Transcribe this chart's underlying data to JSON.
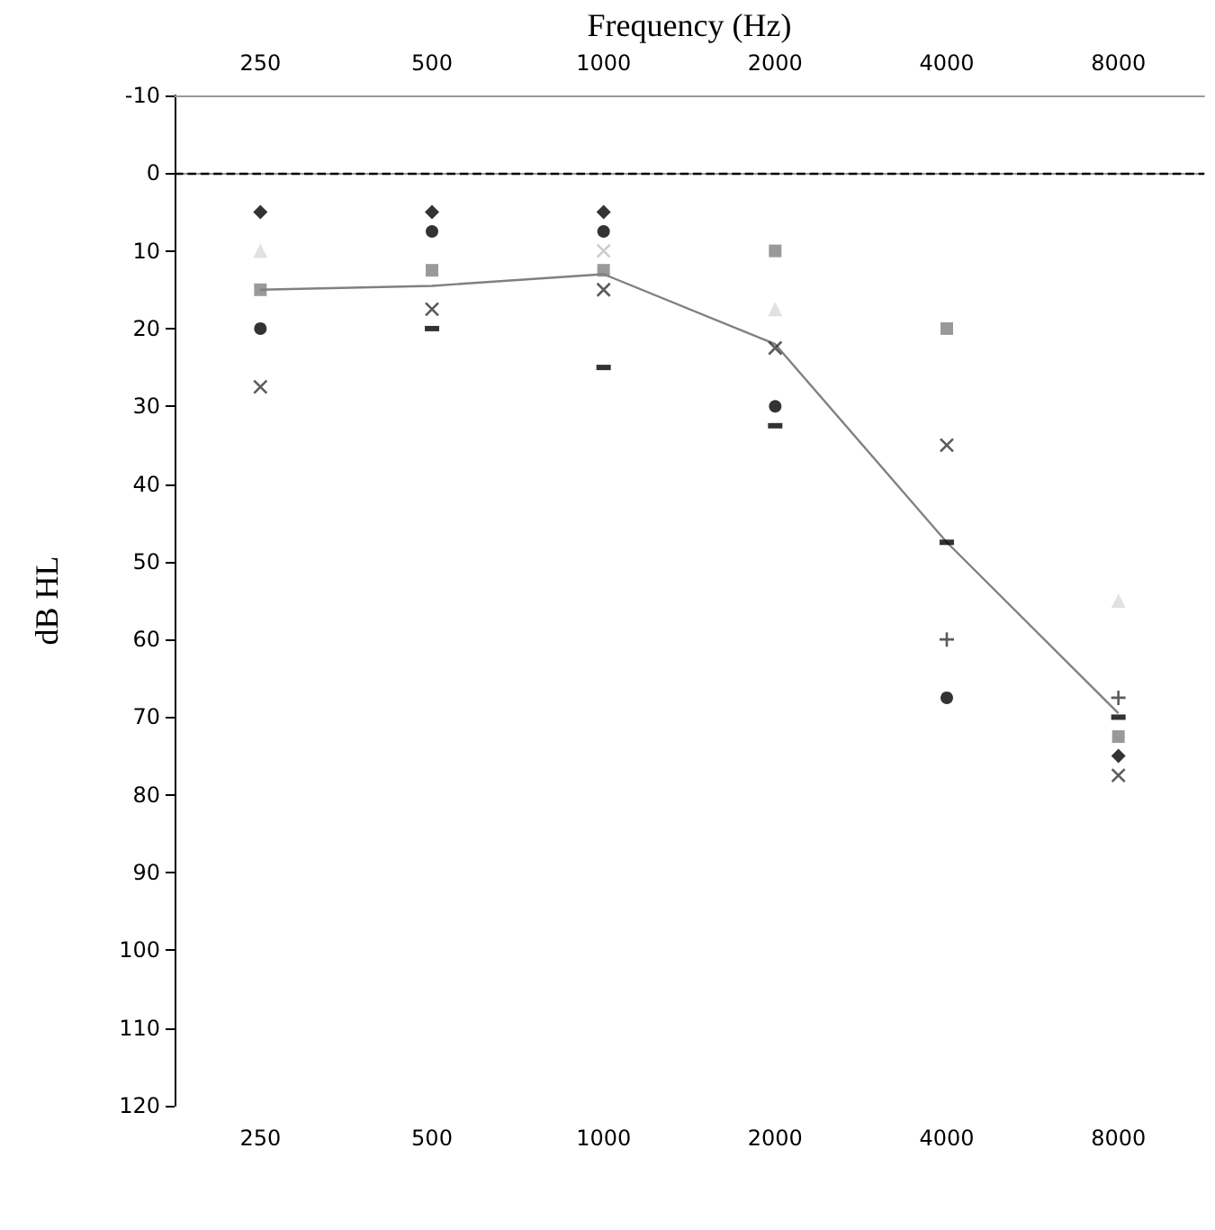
{
  "chart_data": {
    "type": "scatter",
    "xlabel": "Frequency (Hz)",
    "ylabel": "dB HL",
    "categories": [
      "250",
      "500",
      "1000",
      "2000",
      "4000",
      "8000"
    ],
    "ylim": [
      120,
      -10
    ],
    "yticks": [
      -10,
      0,
      10,
      20,
      30,
      40,
      50,
      60,
      70,
      80,
      90,
      100,
      110,
      120
    ],
    "grid": false,
    "ref_lines": [
      {
        "axis": "y",
        "value": 0,
        "color": "#000000",
        "line_style": "dashed"
      }
    ],
    "series": [
      {
        "color": "#000000",
        "marker": "diamond",
        "values": [
          5,
          5,
          5,
          null,
          null,
          75
        ]
      },
      {
        "color": "#000000",
        "marker": "circle",
        "values": [
          20,
          7.5,
          7.5,
          30,
          67.5,
          null
        ]
      },
      {
        "color": "#d9d9d9",
        "marker": "triangle",
        "values": [
          10,
          null,
          null,
          17.5,
          null,
          55
        ]
      },
      {
        "color": "#7f7f7f",
        "marker": "square",
        "values": [
          15,
          12.5,
          12.5,
          10,
          20,
          72.5
        ]
      },
      {
        "color": "#333333",
        "marker": "cross",
        "values": [
          27.5,
          17.5,
          15,
          22.5,
          35,
          77.5
        ]
      },
      {
        "color": "#000000",
        "values": [
          null,
          20,
          25,
          32.5,
          47.5,
          70
        ]
      },
      {
        "color": "#333333",
        "marker": "plus",
        "values": [
          null,
          null,
          null,
          null,
          60,
          67.5
        ]
      },
      {
        "color": "#bfbfbf",
        "marker": "cross",
        "values": [
          null,
          null,
          10,
          null,
          null,
          null
        ]
      },
      {
        "type": "line",
        "color": "#808080",
        "marker": "none",
        "values": [
          15,
          14.5,
          13,
          22,
          47.5,
          69.5
        ]
      }
    ]
  }
}
